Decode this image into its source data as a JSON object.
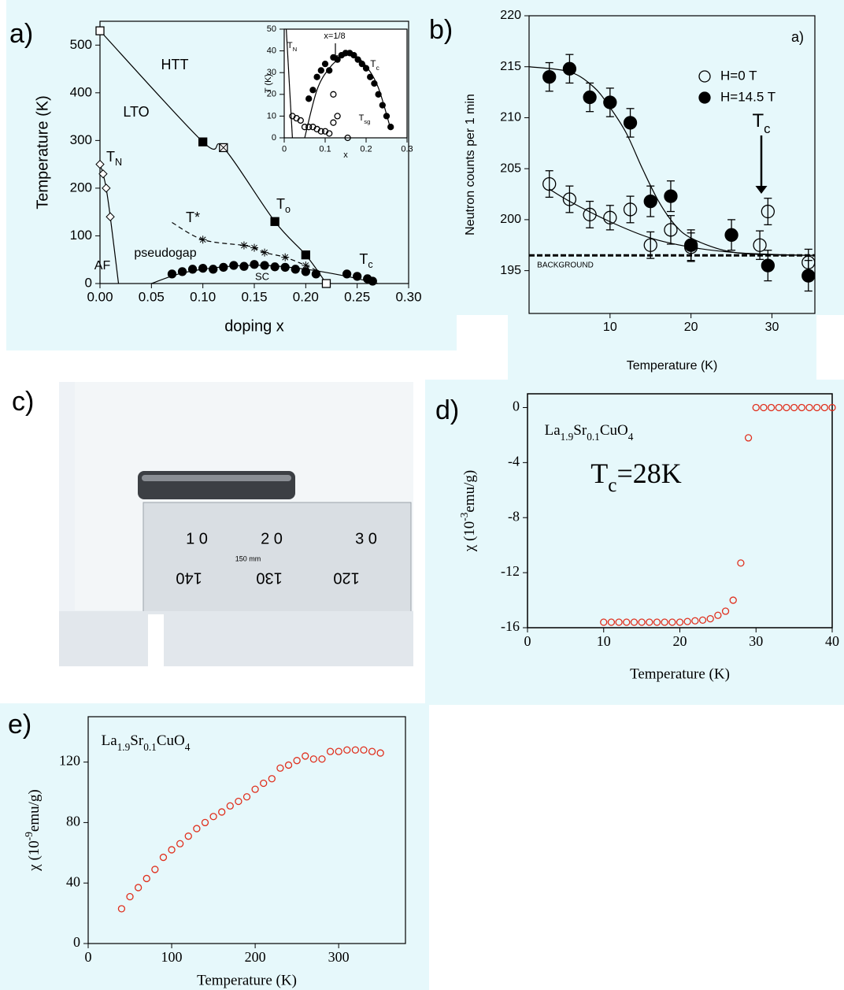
{
  "chart_data": [
    {
      "type": "scatter",
      "panel": "a)",
      "xlabel": "doping x",
      "ylabel": "Temperature (K)",
      "xlim": [
        0,
        0.3
      ],
      "ylim": [
        0,
        550
      ],
      "xticks": [
        {
          "value": 0,
          "label": "0.00"
        },
        {
          "value": 0.05,
          "label": "0.05"
        },
        {
          "value": 0.1,
          "label": "0.10"
        },
        {
          "value": 0.15,
          "label": "0.15"
        },
        {
          "value": 0.2,
          "label": "0.20"
        },
        {
          "value": 0.25,
          "label": "0.25"
        },
        {
          "value": 0.3,
          "label": "0.30"
        }
      ],
      "yticks": [
        0,
        100,
        200,
        300,
        400,
        500
      ],
      "series": [
        {
          "x": [
            0,
            0.1,
            0.12,
            0.17,
            0.2,
            0.22
          ],
          "values": [
            530,
            297,
            285,
            130,
            60,
            0
          ],
          "color": "#000000",
          "line": "solid",
          "markers": [
            "open-square",
            "filled-square",
            "crossed-square",
            "filled-square",
            "filled-square",
            "open-square"
          ]
        },
        {
          "x": [
            0,
            0.003,
            0.006,
            0.01,
            0.018
          ],
          "values": [
            250,
            230,
            200,
            140,
            0
          ],
          "color": "#000000",
          "line": "solid",
          "markers": [
            "open-diamond",
            "open-diamond",
            "open-diamond",
            "open-diamond",
            "none"
          ]
        },
        {
          "x": [
            0.07,
            0.1,
            0.14,
            0.15,
            0.16,
            0.18,
            0.2,
            0.21
          ],
          "values": [
            128,
            92,
            80,
            75,
            65,
            55,
            38,
            28
          ],
          "color": "#000000",
          "line": "dashed",
          "markers": [
            "none",
            "star",
            "star",
            "star",
            "star",
            "star",
            "star",
            "none"
          ]
        },
        {
          "x": [
            0.05,
            0.08,
            0.12,
            0.16,
            0.2,
            0.24,
            0.27
          ],
          "values": [
            0,
            22,
            35,
            38,
            30,
            15,
            0
          ],
          "color": "#000000",
          "line": "solid"
        },
        {
          "x": [
            0.07,
            0.08,
            0.09,
            0.1,
            0.11,
            0.12,
            0.13,
            0.14,
            0.15,
            0.16,
            0.17,
            0.18,
            0.19,
            0.2,
            0.21,
            0.24,
            0.25,
            0.26,
            0.265
          ],
          "values": [
            20,
            25,
            30,
            32,
            30,
            34,
            38,
            36,
            40,
            38,
            35,
            34,
            30,
            25,
            20,
            20,
            15,
            10,
            5
          ],
          "color": "#000000",
          "line": "none",
          "marker": "filled-circle"
        }
      ],
      "annotations": [
        "HTT",
        "LTO",
        [
          {
            "text": "T"
          },
          {
            "text": "N",
            "shift": "sub"
          }
        ],
        [
          {
            "text": "T"
          },
          {
            "text": "o",
            "shift": "sub"
          }
        ],
        "T*",
        "pseudogap",
        "AF",
        "SC",
        [
          {
            "text": "T"
          },
          {
            "text": "c",
            "shift": "sub"
          }
        ]
      ]
    },
    {
      "type": "scatter",
      "xlabel": "x",
      "ylabel": "T (K)",
      "xlim": [
        0,
        0.3
      ],
      "ylim": [
        0,
        50
      ],
      "xticks": [
        0,
        0.1,
        0.2,
        0.3
      ],
      "yticks": [
        0,
        10,
        20,
        30,
        40,
        50
      ],
      "series": [
        {
          "x": [
            0.005,
            0.02
          ],
          "values": [
            50,
            0
          ],
          "color": "#000000",
          "line": "solid"
        },
        {
          "x": [
            0.05,
            0.08,
            0.11,
            0.14,
            0.17,
            0.2,
            0.23,
            0.26
          ],
          "values": [
            0,
            22,
            32,
            37,
            38,
            33,
            23,
            4
          ],
          "color": "#000000",
          "line": "solid"
        },
        {
          "x": [
            0.06,
            0.07,
            0.08,
            0.09,
            0.1,
            0.11,
            0.12,
            0.13,
            0.14,
            0.15,
            0.16,
            0.17,
            0.18,
            0.19,
            0.2,
            0.21,
            0.22,
            0.23,
            0.24,
            0.25,
            0.26
          ],
          "values": [
            18,
            22,
            28,
            31,
            34,
            31,
            37,
            36,
            38,
            39,
            39,
            38,
            36,
            34,
            32,
            28,
            25,
            20,
            15,
            10,
            5
          ],
          "color": "#000000",
          "line": "none",
          "marker": "filled-circle"
        },
        {
          "x": [
            0.02,
            0.03,
            0.04,
            0.05,
            0.06,
            0.07,
            0.08,
            0.09,
            0.1,
            0.11,
            0.12,
            0.12,
            0.13,
            0.155
          ],
          "values": [
            10,
            9,
            8,
            5,
            5,
            5,
            4,
            3,
            3,
            2,
            7,
            20,
            10,
            0
          ],
          "color": "#000000",
          "line": "none",
          "marker": "open-circle"
        }
      ],
      "annotations": [
        [
          {
            "text": "T"
          },
          {
            "text": "N",
            "shift": "sub"
          }
        ],
        "x=1/8",
        [
          {
            "text": "T"
          },
          {
            "text": "c",
            "shift": "sub"
          }
        ],
        [
          {
            "text": "T"
          },
          {
            "text": "sg",
            "shift": "sub"
          }
        ]
      ]
    },
    {
      "type": "scatter",
      "panel": "b)",
      "xlabel": "Temperature (K)",
      "ylabel": "Neutron counts per 1 min",
      "xlim": [
        0,
        35.3
      ],
      "ylim": [
        190.8,
        220
      ],
      "xticks": [
        10,
        20,
        30
      ],
      "yticks": [
        195,
        200,
        205,
        210,
        215,
        220
      ],
      "legend": "upper right",
      "series": [
        {
          "name": "H=0 T",
          "x": [
            2.5,
            5,
            7.5,
            10,
            12.5,
            15,
            17.5,
            20,
            28.5,
            29.5,
            34.5
          ],
          "values": [
            203.5,
            202,
            200.5,
            200.2,
            201,
            197.5,
            199,
            197.3,
            197.5,
            200.8,
            195.8
          ],
          "errors": [
            1.3,
            1.3,
            1.3,
            1.2,
            1.3,
            1.3,
            1.4,
            1.4,
            1.4,
            1.3,
            1.3
          ],
          "color": "#000000",
          "line": "none",
          "marker": "open-circle"
        },
        {
          "name": "H=14.5 T",
          "x": [
            2.5,
            5,
            7.5,
            10,
            12.5,
            15,
            17.5,
            20,
            25,
            29.5,
            34.5
          ],
          "values": [
            214,
            214.8,
            212,
            211.5,
            209.5,
            201.8,
            202.3,
            197.5,
            198.5,
            195.5,
            194.5
          ],
          "errors": [
            1.4,
            1.4,
            1.4,
            1.4,
            1.4,
            1.5,
            1.5,
            1.5,
            1.5,
            1.5,
            1.5
          ],
          "color": "#000000",
          "line": "none",
          "marker": "filled-circle"
        },
        {
          "x": [
            0,
            5,
            8,
            10,
            12,
            14,
            16,
            18,
            20,
            24,
            28,
            35
          ],
          "values": [
            215,
            214.5,
            213,
            211,
            208.5,
            205,
            201.8,
            199.5,
            198.2,
            197,
            196.6,
            196.5
          ],
          "color": "#000000",
          "line": "solid"
        },
        {
          "x": [
            2.5,
            5,
            10,
            15,
            20,
            25,
            30,
            35
          ],
          "values": [
            203,
            201.8,
            199.8,
            198.2,
            197.3,
            196.8,
            196.6,
            196.5
          ],
          "color": "#000000",
          "line": "solid"
        },
        {
          "x": [
            0,
            35.3
          ],
          "values": [
            196.5,
            196.5
          ],
          "color": "#000000",
          "line": "dashed-thick"
        }
      ],
      "annotations": [
        "a)",
        [
          {
            "text": "T"
          },
          {
            "text": "c",
            "shift": "sub"
          }
        ],
        "BACKGROUND"
      ]
    },
    {
      "type": "scatter",
      "panel": "d)",
      "xlabel": "Temperature (K)",
      "ylabel": [
        {
          "text": "χ (10"
        },
        {
          "text": "-3",
          "shift": "super"
        },
        {
          "text": "emu/g)"
        }
      ],
      "xlim": [
        0,
        40
      ],
      "ylim": [
        -16,
        1
      ],
      "xticks": [
        0,
        10,
        20,
        30,
        40
      ],
      "yticks": [
        0,
        -4,
        -8,
        -12,
        -16
      ],
      "series": [
        {
          "x": [
            10,
            11,
            12,
            13,
            14,
            15,
            16,
            17,
            18,
            19,
            20,
            21,
            22,
            23,
            24,
            25,
            26,
            27,
            28,
            29,
            30,
            31,
            32,
            33,
            34,
            35,
            36,
            37,
            38,
            39,
            40
          ],
          "values": [
            -15.6,
            -15.6,
            -15.6,
            -15.6,
            -15.6,
            -15.6,
            -15.6,
            -15.6,
            -15.6,
            -15.6,
            -15.6,
            -15.55,
            -15.5,
            -15.45,
            -15.35,
            -15.1,
            -14.8,
            -14,
            -11.3,
            -2.2,
            0,
            0,
            0,
            0,
            0,
            0,
            0,
            0,
            0,
            0,
            0
          ],
          "color": "#e0301e",
          "line": "none",
          "marker": "open-circle"
        }
      ],
      "annotations": [
        [
          {
            "text": "La"
          },
          {
            "text": "1.9",
            "shift": "sub"
          },
          {
            "text": "Sr"
          },
          {
            "text": "0.1",
            "shift": "sub"
          },
          {
            "text": "CuO"
          },
          {
            "text": "4",
            "shift": "sub"
          }
        ],
        [
          {
            "text": "T"
          },
          {
            "text": "c",
            "shift": "sub"
          },
          {
            "text": "=28K"
          }
        ]
      ]
    },
    {
      "type": "scatter",
      "panel": "e)",
      "xlabel": "Temperature (K)",
      "ylabel": [
        {
          "text": "χ (10"
        },
        {
          "text": "-9",
          "shift": "super"
        },
        {
          "text": "emu/g)"
        }
      ],
      "xlim": [
        0,
        380
      ],
      "ylim": [
        0,
        150
      ],
      "xticks": [
        0,
        100,
        200,
        300
      ],
      "yticks": [
        0,
        40,
        80,
        120
      ],
      "series": [
        {
          "x": [
            40,
            50,
            60,
            70,
            80,
            90,
            100,
            110,
            120,
            130,
            140,
            150,
            160,
            170,
            180,
            190,
            200,
            210,
            220,
            230,
            240,
            250,
            260,
            270,
            280,
            290,
            300,
            310,
            320,
            330,
            340,
            350
          ],
          "values": [
            23,
            31,
            37,
            43,
            49,
            57,
            62,
            66,
            71,
            76,
            80,
            84,
            87,
            91,
            94,
            97,
            102,
            106,
            109,
            116,
            118,
            121,
            124,
            122,
            122,
            127,
            127,
            128,
            128,
            128,
            127,
            126
          ],
          "color": "#e0301e",
          "line": "none",
          "marker": "open-circle"
        }
      ],
      "annotations": [
        [
          {
            "text": "La"
          },
          {
            "text": "1.9",
            "shift": "sub"
          },
          {
            "text": "Sr"
          },
          {
            "text": "0.1",
            "shift": "sub"
          },
          {
            "text": "CuO"
          },
          {
            "text": "4",
            "shift": "sub"
          }
        ]
      ]
    }
  ],
  "photo": {
    "panel": "c)",
    "ruler_top": [
      "1 0",
      "2 0",
      "3 0"
    ],
    "ruler_mid": "150 mm",
    "ruler_bottom": [
      "140",
      "130",
      "120"
    ]
  }
}
